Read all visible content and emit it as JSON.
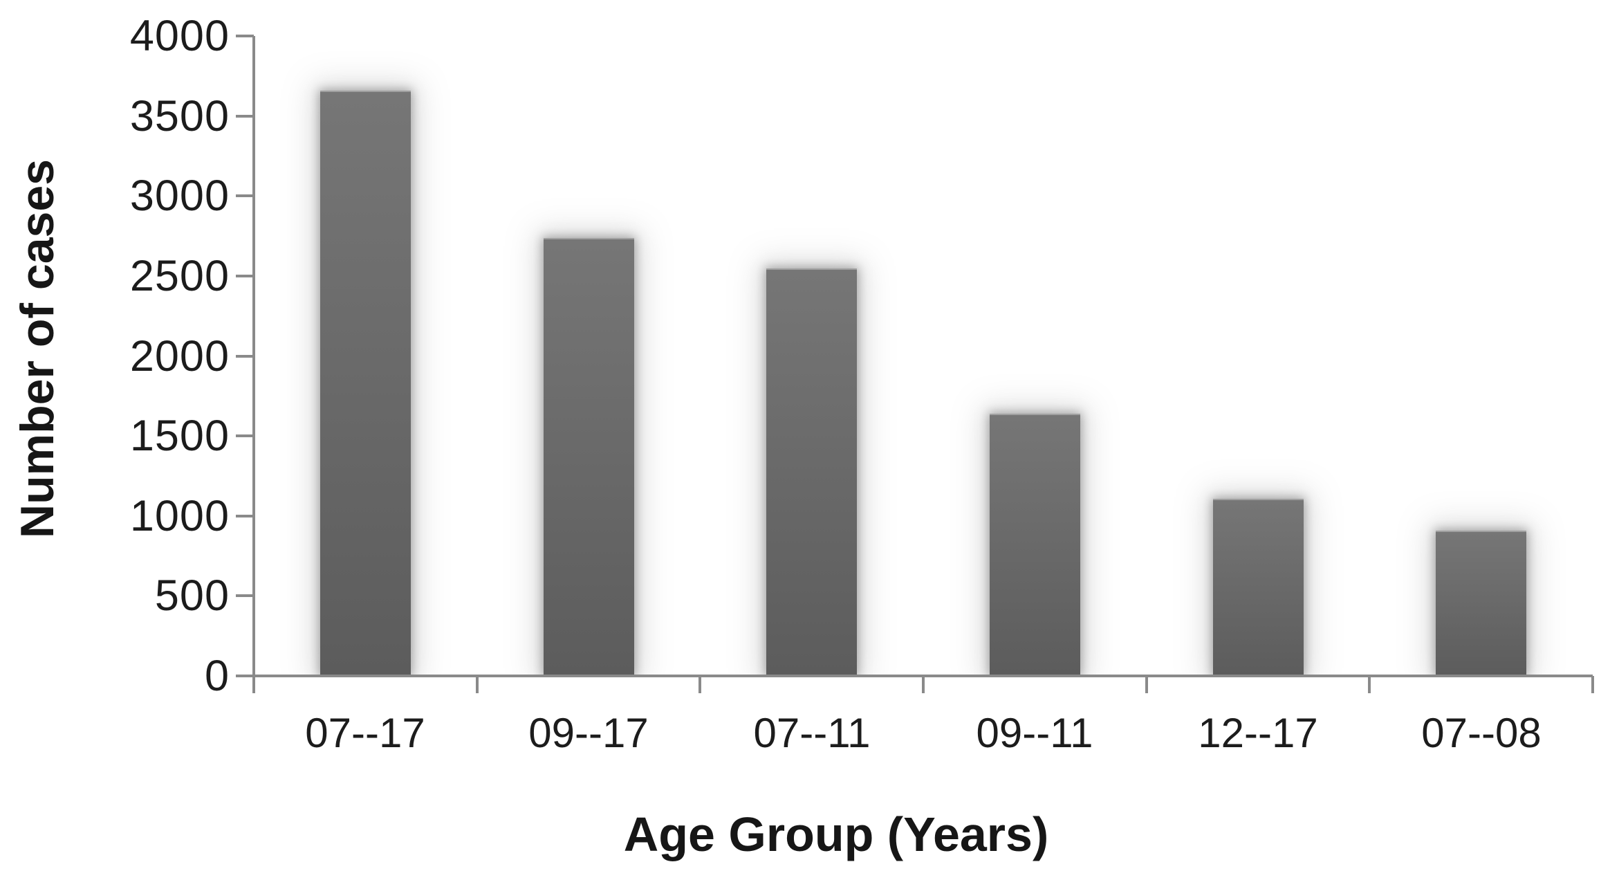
{
  "chart_data": {
    "type": "bar",
    "categories": [
      "07--17",
      "09--17",
      "07--11",
      "09--11",
      "12--17",
      "07--08"
    ],
    "values": [
      3650,
      2730,
      2540,
      1630,
      1100,
      900
    ],
    "xlabel": "Age Group (Years)",
    "ylabel": "Number of cases",
    "ylim": [
      0,
      4000
    ],
    "yticks": [
      0,
      500,
      1000,
      1500,
      2000,
      2500,
      3000,
      3500,
      4000
    ],
    "grid": false,
    "legend_position": "none",
    "bar_color_top": "#767676",
    "bar_color_bottom": "#5c5c5c",
    "axis_color": "#8a8a8a",
    "text_color": "#1c1c1c"
  }
}
